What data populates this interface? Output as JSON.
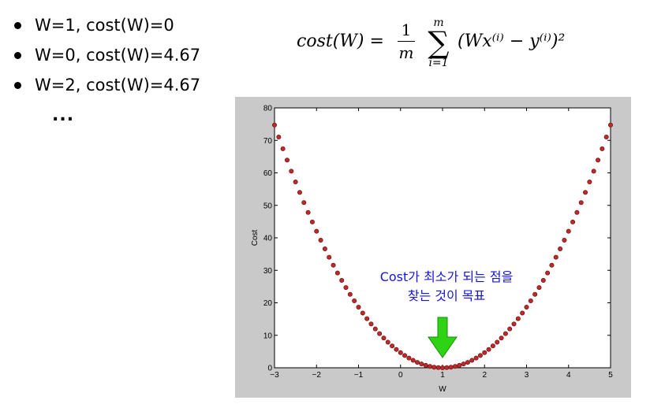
{
  "bullets": [
    {
      "text": "W=1, cost(W)=0"
    },
    {
      "text": "W=0, cost(W)=4.67"
    },
    {
      "text": "W=2, cost(W)=4.67"
    }
  ],
  "ellipsis": "...",
  "formula": {
    "lhs": "cost(W) =",
    "frac_num": "1",
    "frac_den": "m",
    "sum_upper": "m",
    "sum_symbol": "∑",
    "sum_lower": "i=1",
    "rhs": "(Wx⁽ⁱ⁾ − y⁽ⁱ⁾)²"
  },
  "annotation": {
    "line1": "Cost가 최소가 되는 점을",
    "line2": "찾는 것이 목표"
  },
  "colors": {
    "marker": "#c0282a",
    "arrow": "#2ed414",
    "annotation": "#1414e6",
    "panel": "#c9c9c9"
  },
  "chart_data": {
    "type": "scatter",
    "title": "",
    "xlabel": "W",
    "ylabel": "Cost",
    "xlim": [
      -3,
      5
    ],
    "ylim": [
      0,
      80
    ],
    "xticks": [
      "−3",
      "−2",
      "−1",
      "0",
      "1",
      "2",
      "3",
      "4",
      "5"
    ],
    "yticks": [
      "0",
      "10",
      "20",
      "30",
      "40",
      "50",
      "60",
      "70",
      "80"
    ],
    "function": "cost(W) = 4.67 * (W - 1)^2",
    "W_range": [
      -3,
      5
    ],
    "point_count": 81,
    "grid": false
  }
}
